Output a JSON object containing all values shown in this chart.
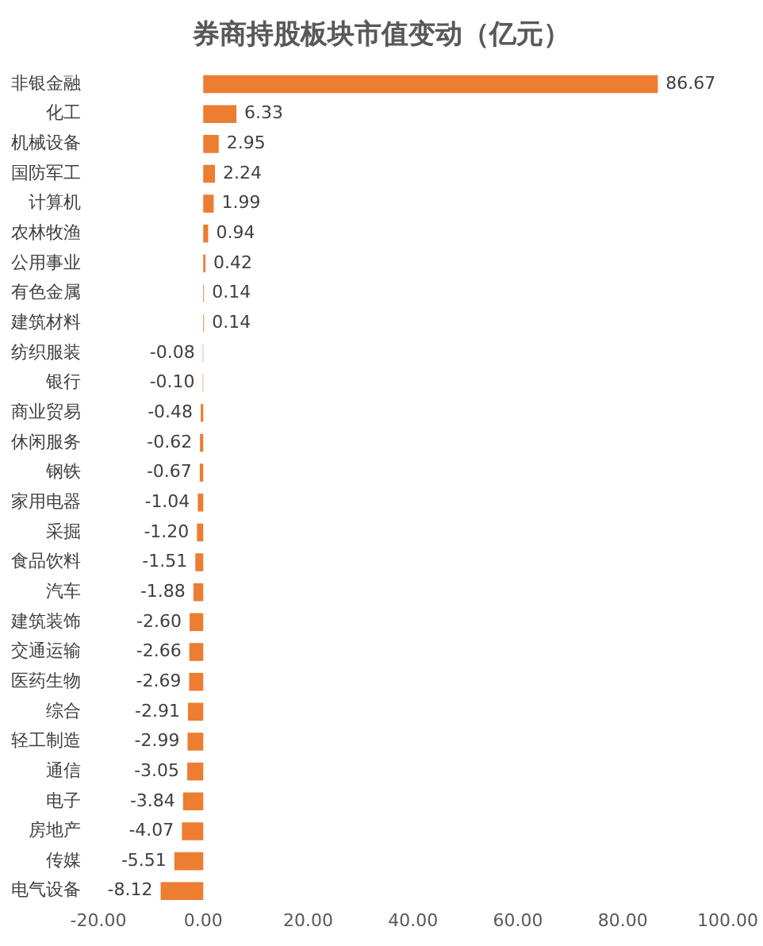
{
  "chart_data": {
    "type": "bar",
    "orientation": "horizontal",
    "title": "券商持股板块市值变动（亿元）",
    "categories": [
      "非银金融",
      "化工",
      "机械设备",
      "国防军工",
      "计算机",
      "农林牧渔",
      "公用事业",
      "有色金属",
      "建筑材料",
      "纺织服装",
      "银行",
      "商业贸易",
      "休闲服务",
      "钢铁",
      "家用电器",
      "采掘",
      "食品饮料",
      "汽车",
      "建筑装饰",
      "交通运输",
      "医药生物",
      "综合",
      "轻工制造",
      "通信",
      "电子",
      "房地产",
      "传媒",
      "电气设备"
    ],
    "values": [
      86.67,
      6.33,
      2.95,
      2.24,
      1.99,
      0.94,
      0.42,
      0.14,
      0.14,
      -0.08,
      -0.1,
      -0.48,
      -0.62,
      -0.67,
      -1.04,
      -1.2,
      -1.51,
      -1.88,
      -2.6,
      -2.66,
      -2.69,
      -2.91,
      -2.99,
      -3.05,
      -3.84,
      -4.07,
      -5.51,
      -8.12
    ],
    "color": "#ed7d31",
    "xlim": [
      -20,
      100
    ],
    "xticks": [
      {
        "value": -20,
        "label": "-20.00"
      },
      {
        "value": 0,
        "label": "0.00"
      },
      {
        "value": 20,
        "label": "20.00"
      },
      {
        "value": 40,
        "label": "40.00"
      },
      {
        "value": 60,
        "label": "60.00"
      },
      {
        "value": 80,
        "label": "80.00"
      },
      {
        "value": 100,
        "label": "100.00"
      }
    ],
    "value_labels": [
      "86.67",
      "6.33",
      "2.95",
      "2.24",
      "1.99",
      "0.94",
      "0.42",
      "0.14",
      "0.14",
      "-0.08",
      "-0.10",
      "-0.48",
      "-0.62",
      "-0.67",
      "-1.04",
      "-1.20",
      "-1.51",
      "-1.88",
      "-2.60",
      "-2.66",
      "-2.69",
      "-2.91",
      "-2.99",
      "-3.05",
      "-3.84",
      "-4.07",
      "-5.51",
      "-8.12"
    ],
    "grid": false,
    "legend": false
  }
}
